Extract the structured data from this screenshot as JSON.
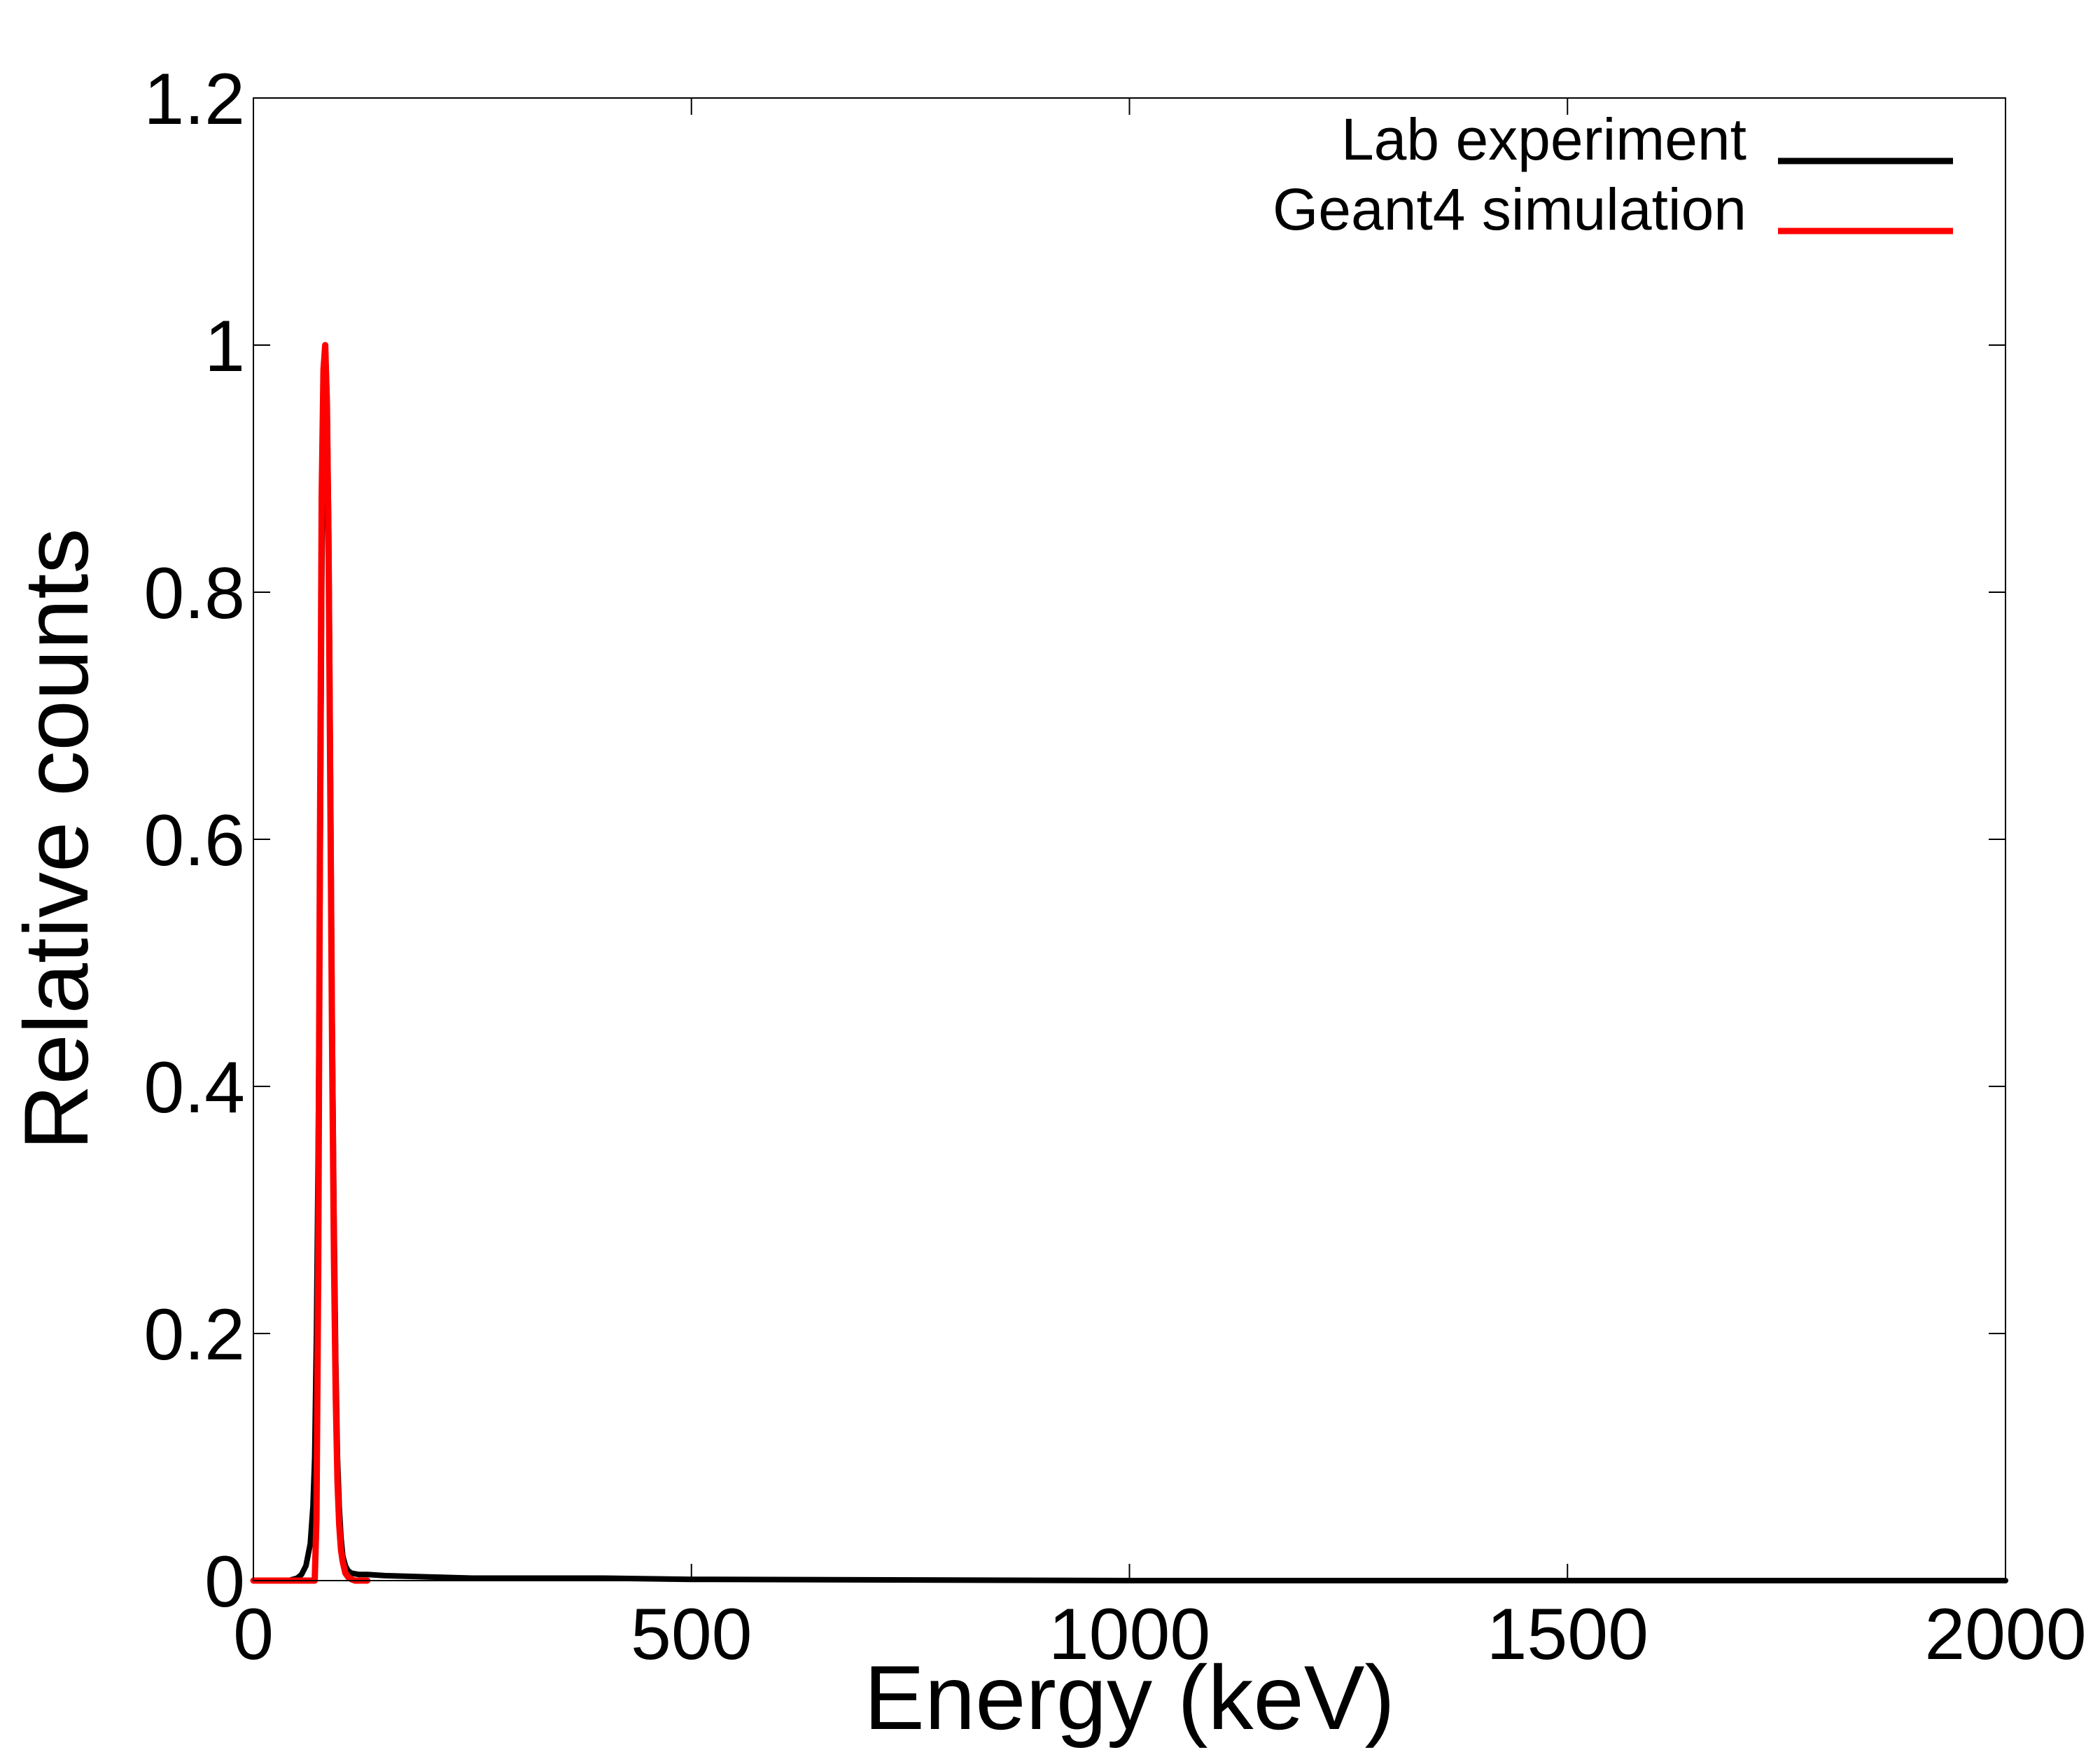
{
  "chart_data": {
    "type": "line",
    "title": "",
    "xlabel": "Energy (keV)",
    "ylabel": "Relative counts",
    "xlim": [
      0,
      2000
    ],
    "ylim": [
      0,
      1.2
    ],
    "x_ticks": [
      0,
      500,
      1000,
      1500,
      2000
    ],
    "x_tick_labels": [
      "0",
      "500",
      "1000",
      "1500",
      "2000"
    ],
    "y_ticks": [
      0,
      0.2,
      0.4,
      0.6,
      0.8,
      1,
      1.2
    ],
    "y_tick_labels": [
      "0",
      "0.2",
      "0.4",
      "0.6",
      "0.8",
      "1",
      "1.2"
    ],
    "grid": false,
    "legend_position": "top-right",
    "series": [
      {
        "name": "Lab experiment",
        "color": "#000000",
        "x": [
          0,
          40,
          50,
          55,
          60,
          65,
          68,
          70,
          72,
          74,
          76,
          78,
          80,
          82,
          84,
          86,
          88,
          90,
          92,
          94,
          96,
          98,
          100,
          102,
          105,
          108,
          112,
          120,
          130,
          150,
          200,
          250,
          300,
          400,
          500,
          1000,
          1500,
          2000
        ],
        "y": [
          0,
          0,
          0.002,
          0.005,
          0.012,
          0.03,
          0.06,
          0.1,
          0.2,
          0.35,
          0.55,
          0.8,
          0.96,
          1.0,
          0.96,
          0.85,
          0.65,
          0.45,
          0.3,
          0.18,
          0.1,
          0.06,
          0.035,
          0.02,
          0.012,
          0.008,
          0.006,
          0.005,
          0.005,
          0.004,
          0.003,
          0.002,
          0.002,
          0.002,
          0.001,
          0,
          0,
          0
        ]
      },
      {
        "name": "Geant4 simulation",
        "color": "#ff0000",
        "x": [
          0,
          20,
          40,
          60,
          70,
          72,
          74,
          76,
          78,
          80,
          82,
          84,
          86,
          88,
          90,
          92,
          94,
          96,
          98,
          100,
          102,
          105,
          108,
          112,
          116,
          120,
          130
        ],
        "y": [
          0,
          0,
          0,
          0,
          0,
          0.05,
          0.25,
          0.6,
          0.88,
          0.98,
          1.0,
          0.95,
          0.82,
          0.62,
          0.42,
          0.26,
          0.15,
          0.08,
          0.045,
          0.025,
          0.015,
          0.006,
          0.003,
          0.001,
          0,
          0,
          0
        ]
      }
    ]
  }
}
